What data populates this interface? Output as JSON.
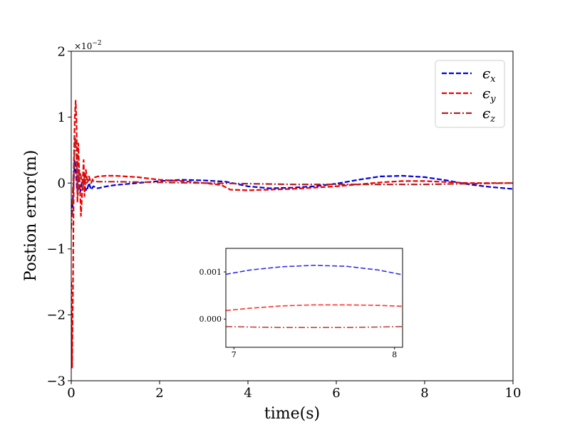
{
  "chart_data": [
    {
      "type": "line",
      "role": "main",
      "xlabel": "time(s)",
      "ylabel": "Postion error(m)",
      "xlim": [
        0,
        10
      ],
      "ylim": [
        -3,
        2
      ],
      "y_scale_label": "×10",
      "y_scale_exponent": "−2",
      "x_ticks": [
        0,
        2,
        4,
        6,
        8,
        10
      ],
      "x_tick_labels": [
        "0",
        "2",
        "4",
        "6",
        "8",
        "10"
      ],
      "y_ticks": [
        -3,
        -2,
        -1,
        0,
        1,
        2
      ],
      "y_tick_labels": [
        "−3",
        "−2",
        "−1",
        "0",
        "1",
        "2"
      ],
      "grid": false,
      "legend_position": "top-right",
      "series": [
        {
          "name": "ϵx",
          "base": "ϵ",
          "sub": "x",
          "color": "#0000dd",
          "dash": "dashed",
          "x": [
            0,
            0.02,
            0.04,
            0.06,
            0.08,
            0.1,
            0.13,
            0.16,
            0.2,
            0.25,
            0.3,
            0.35,
            0.4,
            0.45,
            0.5,
            0.6,
            0.8,
            1,
            1.5,
            2,
            2.5,
            3,
            3.5,
            4,
            4.5,
            5,
            5.5,
            6,
            6.5,
            7,
            7.5,
            8,
            8.5,
            9,
            9.5,
            10
          ],
          "values": [
            -0.3,
            -0.5,
            -0.2,
            0.1,
            0.35,
            0.2,
            -0.1,
            0.05,
            -0.15,
            0.05,
            -0.05,
            -0.12,
            0.0,
            -0.1,
            -0.05,
            -0.08,
            -0.05,
            -0.03,
            0.0,
            0.03,
            0.05,
            0.04,
            0.02,
            -0.05,
            -0.08,
            -0.07,
            -0.05,
            -0.01,
            0.05,
            0.1,
            0.11,
            0.09,
            0.04,
            -0.02,
            -0.06,
            -0.09
          ]
        },
        {
          "name": "ϵy",
          "base": "ϵ",
          "sub": "y",
          "color": "#ee0000",
          "dash": "dashed",
          "x": [
            0,
            0.02,
            0.04,
            0.06,
            0.08,
            0.1,
            0.12,
            0.14,
            0.16,
            0.18,
            0.2,
            0.22,
            0.25,
            0.28,
            0.3,
            0.33,
            0.36,
            0.4,
            0.45,
            0.5,
            0.6,
            0.8,
            1,
            1.5,
            2,
            2.5,
            3,
            3.4,
            3.6,
            4,
            5,
            6,
            6.5,
            7,
            7.5,
            8,
            9,
            10
          ],
          "values": [
            -1.5,
            -2.8,
            -1.5,
            0.3,
            1.0,
            1.25,
            0.9,
            -0.3,
            0.6,
            0.15,
            -0.1,
            -0.5,
            -0.1,
            0.35,
            -0.2,
            0.2,
            0.05,
            0.1,
            0.0,
            0.08,
            0.1,
            0.11,
            0.11,
            0.09,
            0.05,
            0.03,
            0.0,
            -0.03,
            -0.1,
            -0.11,
            -0.09,
            -0.05,
            -0.02,
            0.01,
            0.03,
            0.03,
            0.0,
            0.0
          ]
        },
        {
          "name": "ϵz",
          "base": "ϵ",
          "sub": "z",
          "color": "#b22222",
          "dash": "dashdot",
          "x": [
            0,
            0.03,
            0.06,
            0.09,
            0.12,
            0.15,
            0.18,
            0.22,
            0.26,
            0.3,
            0.35,
            0.4,
            0.5,
            0.6,
            0.8,
            1,
            2,
            3,
            4,
            5,
            6,
            7,
            8,
            9,
            10
          ],
          "values": [
            -0.7,
            -0.2,
            0.3,
            0.7,
            0.4,
            -0.2,
            0.2,
            0.1,
            -0.1,
            0.1,
            0.0,
            0.05,
            0.03,
            0.02,
            0.02,
            0.02,
            0.01,
            0.0,
            -0.01,
            -0.02,
            -0.02,
            -0.02,
            -0.02,
            -0.01,
            0.0
          ]
        }
      ]
    },
    {
      "type": "line",
      "role": "inset",
      "xlim": [
        6.95,
        8.05
      ],
      "ylim": [
        -0.0006,
        0.0015
      ],
      "x_ticks": [
        7,
        8
      ],
      "x_tick_labels": [
        "7",
        "8"
      ],
      "y_ticks": [
        0.0,
        0.001
      ],
      "y_tick_labels": [
        "0.000",
        "0.001"
      ],
      "series": [
        {
          "name": "ϵx",
          "color": "#3333ee",
          "dash": "dashed",
          "x": [
            6.95,
            7.1,
            7.3,
            7.5,
            7.7,
            7.9,
            8.05
          ],
          "values": [
            0.00095,
            0.00104,
            0.00111,
            0.00114,
            0.00112,
            0.00104,
            0.00094
          ]
        },
        {
          "name": "ϵy",
          "color": "#ff3333",
          "dash": "dashed",
          "x": [
            6.95,
            7.1,
            7.3,
            7.5,
            7.7,
            7.9,
            8.05
          ],
          "values": [
            0.00018,
            0.00023,
            0.00028,
            0.0003,
            0.0003,
            0.00029,
            0.00027
          ]
        },
        {
          "name": "ϵz",
          "color": "#c04444",
          "dash": "dashdot",
          "x": [
            6.95,
            7.1,
            7.3,
            7.5,
            7.7,
            7.9,
            8.05
          ],
          "values": [
            -0.00016,
            -0.00017,
            -0.00018,
            -0.00018,
            -0.00018,
            -0.00017,
            -0.00016
          ]
        }
      ]
    }
  ]
}
